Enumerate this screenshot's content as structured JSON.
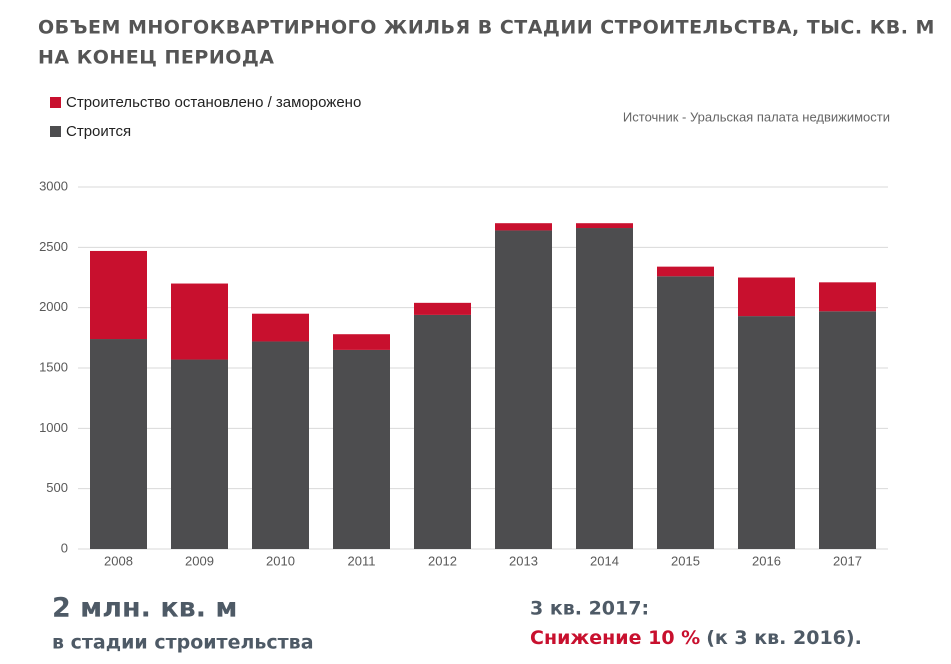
{
  "chart_data": {
    "type": "stacked_bar",
    "title": "ОБЪЕМ МНОГОКВАРТИРНОГО ЖИЛЬЯ В СТАДИИ СТРОИТЕЛЬСТВА, ТЫС. КВ. М",
    "subtitle": "НА КОНЕЦ ПЕРИОДА",
    "source": "Источник - Уральская палата недвижимости",
    "categories": [
      "2008",
      "2009",
      "2010",
      "2011",
      "2012",
      "2013",
      "2014",
      "2015",
      "2016",
      "2017"
    ],
    "series": [
      {
        "name": "Строится",
        "color": "#4d4d4f",
        "values": [
          1740,
          1570,
          1720,
          1650,
          1940,
          2640,
          2660,
          2260,
          1930,
          1970
        ]
      },
      {
        "name": "Строительство остановлено / заморожено",
        "color": "#c8102e",
        "values": [
          730,
          630,
          230,
          130,
          100,
          60,
          40,
          80,
          320,
          240
        ]
      }
    ],
    "ylim": [
      0,
      3000
    ],
    "yticks": [
      0,
      500,
      1000,
      1500,
      2000,
      2500,
      3000
    ],
    "grid": true,
    "annotations": {
      "big": "2 млн. кв. м",
      "big_sub": "в стадии строительства",
      "period": "3 кв. 2017:",
      "decline": "Снижение 10 %",
      "decline_ref": "(к 3 кв. 2016)."
    }
  }
}
